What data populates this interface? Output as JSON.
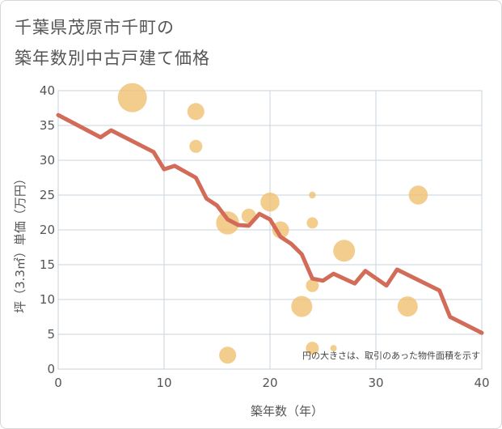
{
  "chart_data": {
    "type": "scatter",
    "title_line1": "千葉県茂原市千町の",
    "title_line2": "築年数別中古戸建て価格",
    "xlabel": "築年数（年）",
    "ylabel": "坪（3.3㎡）単価（万円）",
    "xlim": [
      0,
      40
    ],
    "ylim": [
      0,
      40
    ],
    "x_ticks": [
      "0",
      "10",
      "20",
      "30",
      "40"
    ],
    "y_ticks": [
      "0",
      "5",
      "10",
      "15",
      "20",
      "25",
      "30",
      "35",
      "40"
    ],
    "grid": true,
    "note": "円の大きさは、取引のあった物件面積を示す",
    "bubble_color": "#f0c070",
    "line_color": "#d26b58",
    "bubbles": [
      {
        "x": 7,
        "y": 39,
        "size": 6
      },
      {
        "x": 13,
        "y": 37,
        "size": 3
      },
      {
        "x": 13,
        "y": 32,
        "size": 2
      },
      {
        "x": 16,
        "y": 21,
        "size": 4.5
      },
      {
        "x": 16,
        "y": 2,
        "size": 3
      },
      {
        "x": 18,
        "y": 22,
        "size": 2.4
      },
      {
        "x": 20,
        "y": 24,
        "size": 3.5
      },
      {
        "x": 21,
        "y": 20,
        "size": 3
      },
      {
        "x": 23,
        "y": 9,
        "size": 4
      },
      {
        "x": 24,
        "y": 21,
        "size": 1.6
      },
      {
        "x": 24,
        "y": 12,
        "size": 2
      },
      {
        "x": 24,
        "y": 25,
        "size": 0.5
      },
      {
        "x": 24,
        "y": 3,
        "size": 2
      },
      {
        "x": 26,
        "y": 3,
        "size": 0.4
      },
      {
        "x": 27,
        "y": 17,
        "size": 4.2
      },
      {
        "x": 33,
        "y": 9,
        "size": 3.8
      },
      {
        "x": 34,
        "y": 25,
        "size": 3.5
      }
    ],
    "trend": {
      "x": [
        0,
        4,
        5,
        9,
        10,
        11,
        13,
        14,
        15,
        16,
        17,
        18,
        19,
        20,
        21,
        22,
        23,
        24,
        25,
        26,
        28,
        29,
        31,
        32,
        36,
        37,
        40
      ],
      "y": [
        36.5,
        33.3,
        34.3,
        31.2,
        28.7,
        29.2,
        27.5,
        24.5,
        23.5,
        21.5,
        20.7,
        20.6,
        22.3,
        21.5,
        19,
        18,
        16.5,
        13,
        12.7,
        13.7,
        12.3,
        14.1,
        12,
        14.3,
        11.3,
        7.5,
        5.2
      ]
    }
  }
}
